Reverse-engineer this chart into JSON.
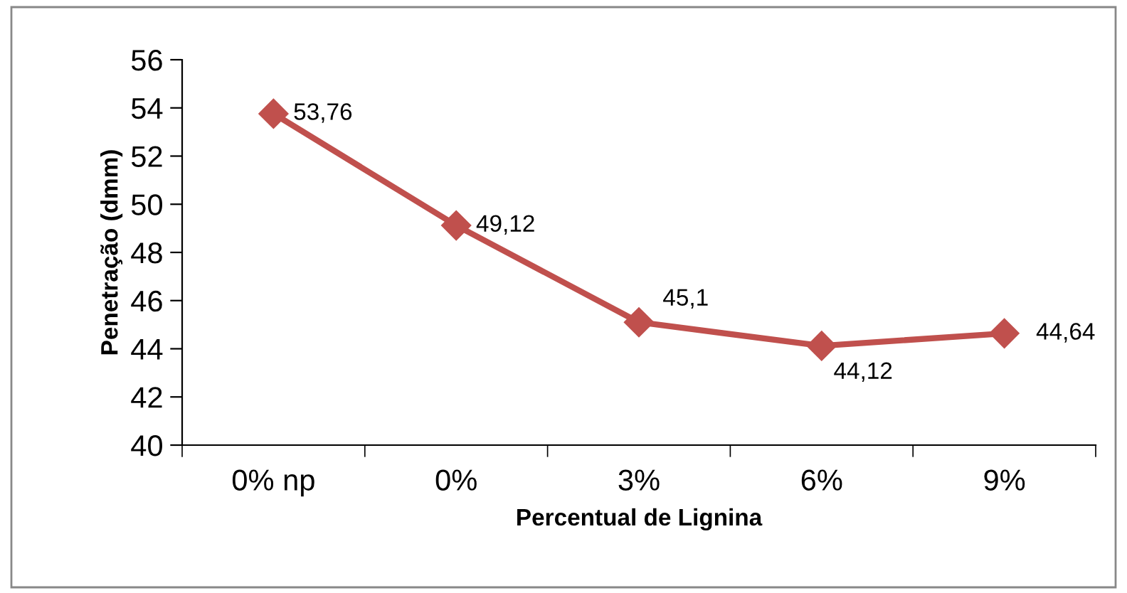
{
  "chart_data": {
    "type": "line",
    "xlabel": "Percentual de Lignina",
    "ylabel": "Penetração (dmm)",
    "categories": [
      "0% np",
      "0%",
      "3%",
      "6%",
      "9%"
    ],
    "series": [
      {
        "color": "#c0504d",
        "values": [
          53.76,
          49.12,
          45.1,
          44.12,
          44.64
        ],
        "value_labels": [
          "53,76",
          "49,12",
          "45,1",
          "44,12",
          "44,64"
        ]
      }
    ],
    "ylim": [
      40,
      56
    ],
    "yticks": [
      40,
      42,
      44,
      46,
      48,
      50,
      52,
      54,
      56
    ],
    "marker": "diamond",
    "line_style": "solid",
    "grid": false,
    "legend": false
  }
}
